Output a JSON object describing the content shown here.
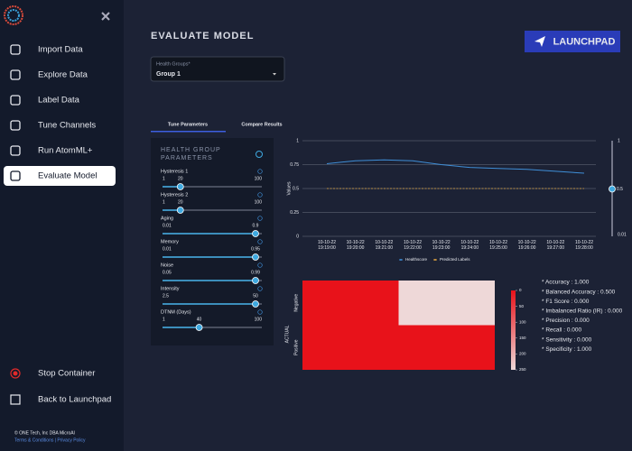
{
  "sidebar": {
    "nav": [
      "Import Data",
      "Explore Data",
      "Label Data",
      "Tune Channels",
      "Run AtomML+",
      "Evaluate Model"
    ],
    "active": 5,
    "bottom": [
      "Stop Container",
      "Back to Launchpad"
    ],
    "copyright": "© ONE Tech, Inc DBA MicroAI",
    "links": "Terms & Conditions | Privacy Policy"
  },
  "header": {
    "title": "EVALUATE MODEL",
    "button": "LAUNCHPAD"
  },
  "select": {
    "label": "Health Groups*",
    "value": "Group 1"
  },
  "tabs": {
    "items": [
      "Tune Parameters",
      "Compare Results"
    ],
    "active": 0
  },
  "parameters": {
    "title": "HEALTH GROUP PARAMETERS",
    "sliders": [
      {
        "label": "Hysteresis 1",
        "min": 1,
        "value": 20,
        "max": 100
      },
      {
        "label": "Hysteresis 2",
        "min": 1,
        "value": 20,
        "max": 100
      },
      {
        "label": "Aging",
        "min": 0.01,
        "max": 0.9
      },
      {
        "label": "Memory",
        "min": 0.01,
        "max": 0.95
      },
      {
        "label": "Noise",
        "min": 0.05,
        "max": 0.99
      },
      {
        "label": "Intensity",
        "min": 2.5,
        "max": 50
      },
      {
        "label": "DTNM (Days)",
        "min": 1,
        "value": 40,
        "max": 100
      }
    ]
  },
  "chart_data": [
    {
      "type": "line",
      "y_label": "Values",
      "categories": [
        "10-10-22 19:19:00",
        "10-10-22 19:20:00",
        "10-10-22 19:21:00",
        "10-10-22 19:22:00",
        "10-10-22 19:23:00",
        "10-10-22 19:24:00",
        "10-10-22 19:25:00",
        "10-10-22 19:26:00",
        "10-10-22 19:27:00",
        "10-10-22 19:28:00"
      ],
      "series": [
        {
          "name": "Healthscore",
          "color": "#3f8fd8",
          "values": [
            0.76,
            0.79,
            0.8,
            0.79,
            0.75,
            0.72,
            0.71,
            0.7,
            0.68,
            0.66
          ]
        },
        {
          "name": "Predicted Labels",
          "color": "#e0a440",
          "dashed": true,
          "values": [
            0.5,
            0.5,
            0.5,
            0.5,
            0.5,
            0.5,
            0.5,
            0.5,
            0.5,
            0.5
          ]
        }
      ],
      "ylim": [
        0,
        1
      ],
      "yticks": [
        0,
        0.25,
        0.5,
        0.75,
        1
      ],
      "grid": true,
      "threshold": {
        "min": 0.01,
        "value": 0.5,
        "max": 1
      }
    },
    {
      "type": "heatmap",
      "y_label": "ACTUAL",
      "rows": [
        "Negative",
        "Positive"
      ],
      "values": [
        [
          0,
          250
        ],
        [
          0,
          0
        ]
      ],
      "zlim": [
        0,
        250
      ],
      "zticks": [
        0,
        50,
        100,
        150,
        200,
        250
      ],
      "colors": [
        "#e8121a",
        "#eed8d8"
      ]
    }
  ],
  "metrics": [
    "* Accuracy : 1.000",
    "* Balanced Accuracy : 0.500",
    "* F1 Score : 0.000",
    "* Imbalanced Ratio (IR) : 0.000",
    "* Precision : 0.000",
    "* Recall : 0.000",
    "* Sensitivity : 0.000",
    "* Specificity : 1.000"
  ]
}
